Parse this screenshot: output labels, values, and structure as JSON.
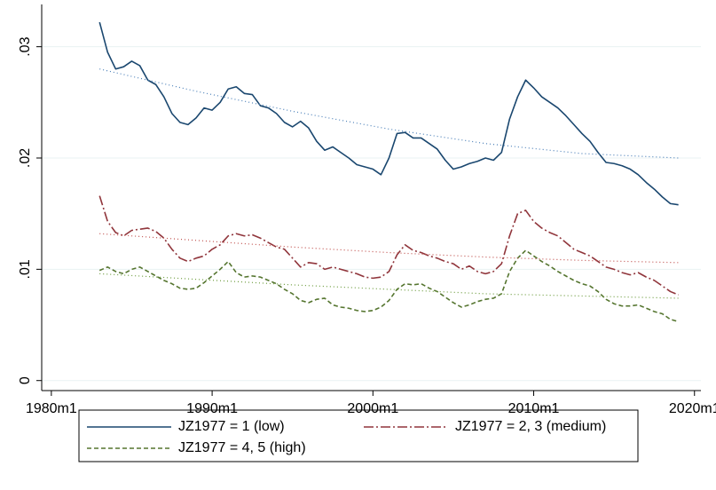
{
  "chart_data": {
    "type": "line",
    "x": [
      1983,
      1983.5,
      1984,
      1984.5,
      1985,
      1985.5,
      1986,
      1986.5,
      1987,
      1987.5,
      1988,
      1988.5,
      1989,
      1989.5,
      1990,
      1990.5,
      1991,
      1991.5,
      1992,
      1992.5,
      1993,
      1993.5,
      1994,
      1994.5,
      1995,
      1995.5,
      1996,
      1996.5,
      1997,
      1997.5,
      1998,
      1998.5,
      1999,
      1999.5,
      2000,
      2000.5,
      2001,
      2001.5,
      2002,
      2002.5,
      2003,
      2003.5,
      2004,
      2004.5,
      2005,
      2005.5,
      2006,
      2006.5,
      2007,
      2007.5,
      2008,
      2008.5,
      2009,
      2009.5,
      2010,
      2010.5,
      2011,
      2011.5,
      2012,
      2012.5,
      2013,
      2013.5,
      2014,
      2014.5,
      2015,
      2015.5,
      2016,
      2016.5,
      2017,
      2017.5,
      2018,
      2018.5,
      2019
    ],
    "series": [
      {
        "name": "JZ1977 = 1 (low)",
        "color": "#1a476f",
        "dash": "solid",
        "values": [
          0.0322,
          0.0295,
          0.028,
          0.0282,
          0.0287,
          0.0283,
          0.027,
          0.0266,
          0.0255,
          0.024,
          0.0232,
          0.023,
          0.0236,
          0.0245,
          0.0243,
          0.025,
          0.0262,
          0.0264,
          0.0258,
          0.0257,
          0.0247,
          0.0245,
          0.024,
          0.0232,
          0.0228,
          0.0233,
          0.0227,
          0.0215,
          0.0207,
          0.021,
          0.0205,
          0.02,
          0.0194,
          0.0192,
          0.019,
          0.0185,
          0.02,
          0.0222,
          0.0223,
          0.0218,
          0.0218,
          0.0213,
          0.0208,
          0.0198,
          0.019,
          0.0192,
          0.0195,
          0.0197,
          0.02,
          0.0198,
          0.0205,
          0.0235,
          0.0255,
          0.027,
          0.0263,
          0.0255,
          0.025,
          0.0245,
          0.0238,
          0.023,
          0.0222,
          0.0215,
          0.0205,
          0.0196,
          0.0195,
          0.0193,
          0.019,
          0.0185,
          0.0178,
          0.0172,
          0.0165,
          0.0159,
          0.0158
        ]
      },
      {
        "name": "JZ1977 = 2, 3 (medium)",
        "color": "#90353b",
        "dash": "dashdot",
        "values": [
          0.0166,
          0.0143,
          0.0133,
          0.013,
          0.0135,
          0.0136,
          0.0137,
          0.0134,
          0.0128,
          0.0118,
          0.011,
          0.0107,
          0.011,
          0.0112,
          0.0118,
          0.0122,
          0.013,
          0.0132,
          0.013,
          0.0131,
          0.0128,
          0.0124,
          0.012,
          0.0118,
          0.011,
          0.0102,
          0.0106,
          0.0105,
          0.01,
          0.0102,
          0.01,
          0.0098,
          0.0096,
          0.0093,
          0.0092,
          0.0093,
          0.0098,
          0.0113,
          0.0122,
          0.0117,
          0.0115,
          0.0112,
          0.011,
          0.0107,
          0.0105,
          0.01,
          0.0103,
          0.0098,
          0.0096,
          0.0098,
          0.0105,
          0.013,
          0.015,
          0.0153,
          0.0143,
          0.0137,
          0.0133,
          0.013,
          0.0124,
          0.0118,
          0.0115,
          0.0112,
          0.0107,
          0.0102,
          0.01,
          0.0097,
          0.0095,
          0.0097,
          0.0093,
          0.009,
          0.0085,
          0.008,
          0.0077
        ]
      },
      {
        "name": "JZ1977 = 4, 5 (high)",
        "color": "#55752f",
        "dash": "dash",
        "values": [
          0.0099,
          0.0102,
          0.0098,
          0.0096,
          0.01,
          0.0102,
          0.0098,
          0.0094,
          0.009,
          0.0087,
          0.0083,
          0.0082,
          0.0083,
          0.0088,
          0.0094,
          0.01,
          0.0107,
          0.0097,
          0.0093,
          0.0094,
          0.0093,
          0.009,
          0.0087,
          0.0082,
          0.0078,
          0.0072,
          0.007,
          0.0073,
          0.0074,
          0.0068,
          0.0066,
          0.0065,
          0.0063,
          0.0062,
          0.0063,
          0.0066,
          0.0072,
          0.0082,
          0.0087,
          0.0086,
          0.0087,
          0.0083,
          0.008,
          0.0075,
          0.007,
          0.0066,
          0.0068,
          0.0071,
          0.0073,
          0.0074,
          0.0078,
          0.0098,
          0.011,
          0.0117,
          0.0112,
          0.0107,
          0.0103,
          0.0098,
          0.0094,
          0.009,
          0.0087,
          0.0085,
          0.008,
          0.0073,
          0.0069,
          0.0067,
          0.0067,
          0.0068,
          0.0065,
          0.0062,
          0.006,
          0.0055,
          0.0053
        ]
      },
      {
        "color": "#4a7fb8",
        "dash": "dot",
        "x": [
          1983,
          1989,
          1995,
          2001,
          2007,
          2013,
          2019
        ],
        "values": [
          0.028,
          0.026,
          0.0242,
          0.0226,
          0.0213,
          0.0204,
          0.02
        ]
      },
      {
        "color": "#c0504d",
        "dash": "dot",
        "x": [
          1983,
          1989,
          1995,
          2001,
          2007,
          2013,
          2019
        ],
        "values": [
          0.0132,
          0.0126,
          0.012,
          0.0115,
          0.0111,
          0.0108,
          0.0106
        ]
      },
      {
        "color": "#6a9a3a",
        "dash": "dot",
        "x": [
          1983,
          1989,
          1995,
          2001,
          2007,
          2013,
          2019
        ],
        "values": [
          0.0096,
          0.0091,
          0.0086,
          0.0082,
          0.0078,
          0.0076,
          0.0074
        ]
      }
    ],
    "xlim": [
      1979.4,
      2020.4
    ],
    "xticks": [
      {
        "value": 1980,
        "label": "1980m1"
      },
      {
        "value": 1990,
        "label": "1990m1"
      },
      {
        "value": 2000,
        "label": "2000m1"
      },
      {
        "value": 2010,
        "label": "2010m1"
      },
      {
        "value": 2020,
        "label": "2020m1"
      }
    ],
    "ylim": [
      -0.0009,
      0.0338
    ],
    "yticks": [
      0,
      {
        "value": 0.01,
        "label": ".01"
      },
      {
        "value": 0.02,
        "label": ".02"
      },
      {
        "value": 0.03,
        "label": ".03"
      }
    ],
    "grid": true
  }
}
